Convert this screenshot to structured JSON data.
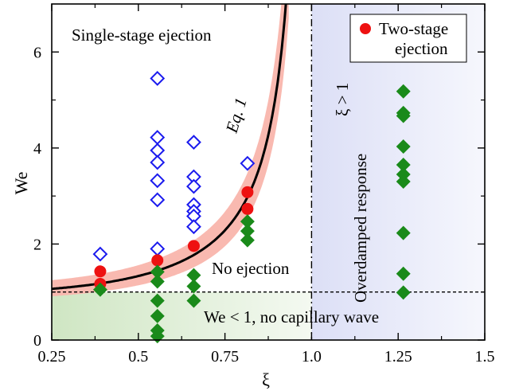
{
  "chart_data": {
    "type": "scatter",
    "xlabel": "ξ",
    "ylabel": "We",
    "xlim": [
      0.25,
      1.5
    ],
    "ylim": [
      0,
      7
    ],
    "xticks": [
      "0.25",
      "0.5",
      "0.75",
      "1.0",
      "1.25",
      "1.5"
    ],
    "yticks": [
      "0",
      "2",
      "4",
      "6"
    ],
    "grid": false,
    "legend": {
      "placement": "top-right",
      "entries": [
        {
          "label_line1": "Two-stage",
          "label_line2": "ejection",
          "color": "#ee1111",
          "marker": "circle"
        }
      ]
    },
    "colors": {
      "single_stage": "#1a1aee",
      "two_stage": "#ee1111",
      "no_ejection": "#1a8a1a",
      "curve": "#000000",
      "curve_band": "#f9b9b0",
      "overdamped_region": "#e4e6f8",
      "no_wave_region": "#d9ecd0"
    },
    "annotations": {
      "single_stage_label": "Single-stage ejection",
      "curve_label": "Eq. 1",
      "no_ejection_label": "No ejection",
      "overdamped_label": "Overdamped response",
      "xi_gt_label": "ξ > 1",
      "no_wave_label": "We < 1, no capillary wave"
    },
    "critical_xi": 1.0,
    "critical_we": 1.0,
    "series": [
      {
        "marker": "open-diamond",
        "points": [
          [
            0.39,
            1.79
          ],
          [
            0.555,
            5.45
          ],
          [
            0.555,
            4.22
          ],
          [
            0.555,
            3.95
          ],
          [
            0.555,
            3.7
          ],
          [
            0.555,
            3.32
          ],
          [
            0.555,
            2.92
          ],
          [
            0.555,
            1.9
          ],
          [
            0.66,
            4.12
          ],
          [
            0.66,
            3.4
          ],
          [
            0.66,
            3.2
          ],
          [
            0.66,
            2.82
          ],
          [
            0.66,
            2.68
          ],
          [
            0.66,
            2.58
          ],
          [
            0.66,
            2.36
          ],
          [
            0.815,
            3.68
          ]
        ]
      },
      {
        "name": "Two-stage ejection",
        "marker": "circle",
        "points": [
          [
            0.39,
            1.43
          ],
          [
            0.39,
            1.17
          ],
          [
            0.555,
            1.66
          ],
          [
            0.66,
            1.96
          ],
          [
            0.815,
            3.08
          ],
          [
            0.815,
            2.73
          ]
        ]
      },
      {
        "marker": "filled-diamond",
        "points": [
          [
            0.39,
            1.05
          ],
          [
            0.555,
            1.42
          ],
          [
            0.555,
            1.22
          ],
          [
            0.555,
            0.82
          ],
          [
            0.555,
            0.5
          ],
          [
            0.555,
            0.2
          ],
          [
            0.555,
            0.08
          ],
          [
            0.66,
            1.35
          ],
          [
            0.66,
            1.12
          ],
          [
            0.66,
            0.82
          ],
          [
            0.815,
            2.47
          ],
          [
            0.815,
            2.27
          ],
          [
            0.815,
            2.08
          ],
          [
            1.265,
            5.18
          ],
          [
            1.265,
            4.73
          ],
          [
            1.265,
            4.67
          ],
          [
            1.265,
            4.03
          ],
          [
            1.265,
            3.65
          ],
          [
            1.265,
            3.45
          ],
          [
            1.265,
            3.3
          ],
          [
            1.265,
            2.23
          ],
          [
            1.265,
            1.38
          ],
          [
            1.265,
            0.99
          ]
        ]
      }
    ]
  }
}
